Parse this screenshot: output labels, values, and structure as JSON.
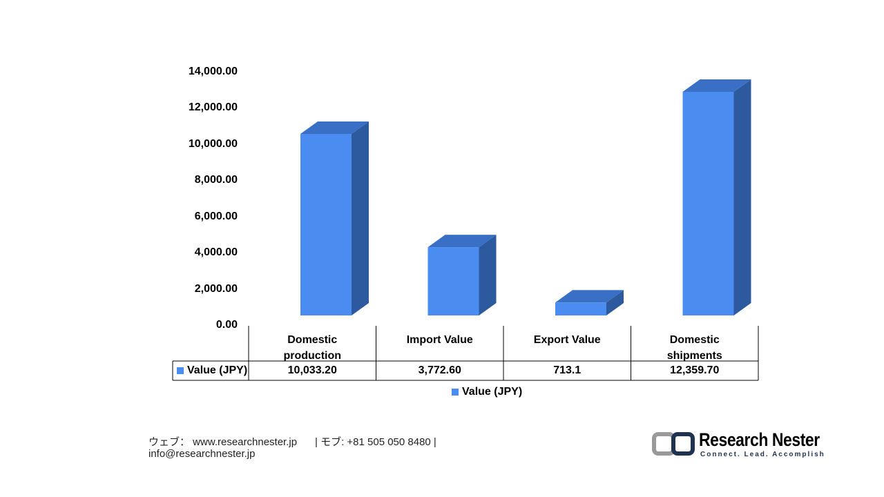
{
  "chart_data": {
    "type": "bar3d",
    "categories": [
      "Domestic production",
      "Import Value",
      "Export Value",
      "Domestic shipments"
    ],
    "series": [
      {
        "name": "Value (JPY)",
        "color": "#4a8cf0",
        "values": [
          10033.2,
          3772.6,
          713.1,
          12359.7
        ],
        "value_labels": [
          "10,033.20",
          "3,772.60",
          "713.1",
          "12,359.70"
        ]
      }
    ],
    "ylim": [
      0,
      14000
    ],
    "yticks": [
      {
        "value": 0,
        "label": "0.00"
      },
      {
        "value": 2000,
        "label": "2,000.00"
      },
      {
        "value": 4000,
        "label": "4,000.00"
      },
      {
        "value": 6000,
        "label": "6,000.00"
      },
      {
        "value": 8000,
        "label": "8,000.00"
      },
      {
        "value": 10000,
        "label": "10,000.00"
      },
      {
        "value": 12000,
        "label": "12,000.00"
      },
      {
        "value": 14000,
        "label": "14,000.00"
      }
    ],
    "grid": false
  },
  "footer": {
    "web": "ウェブ： www.researchnester.jp",
    "phone": "| モブ: +81 505 050 8480 |",
    "email": "info@researchnester.jp"
  },
  "logo": {
    "name": "Research Nester",
    "tagline": "Connect. Lead. Accomplish"
  }
}
